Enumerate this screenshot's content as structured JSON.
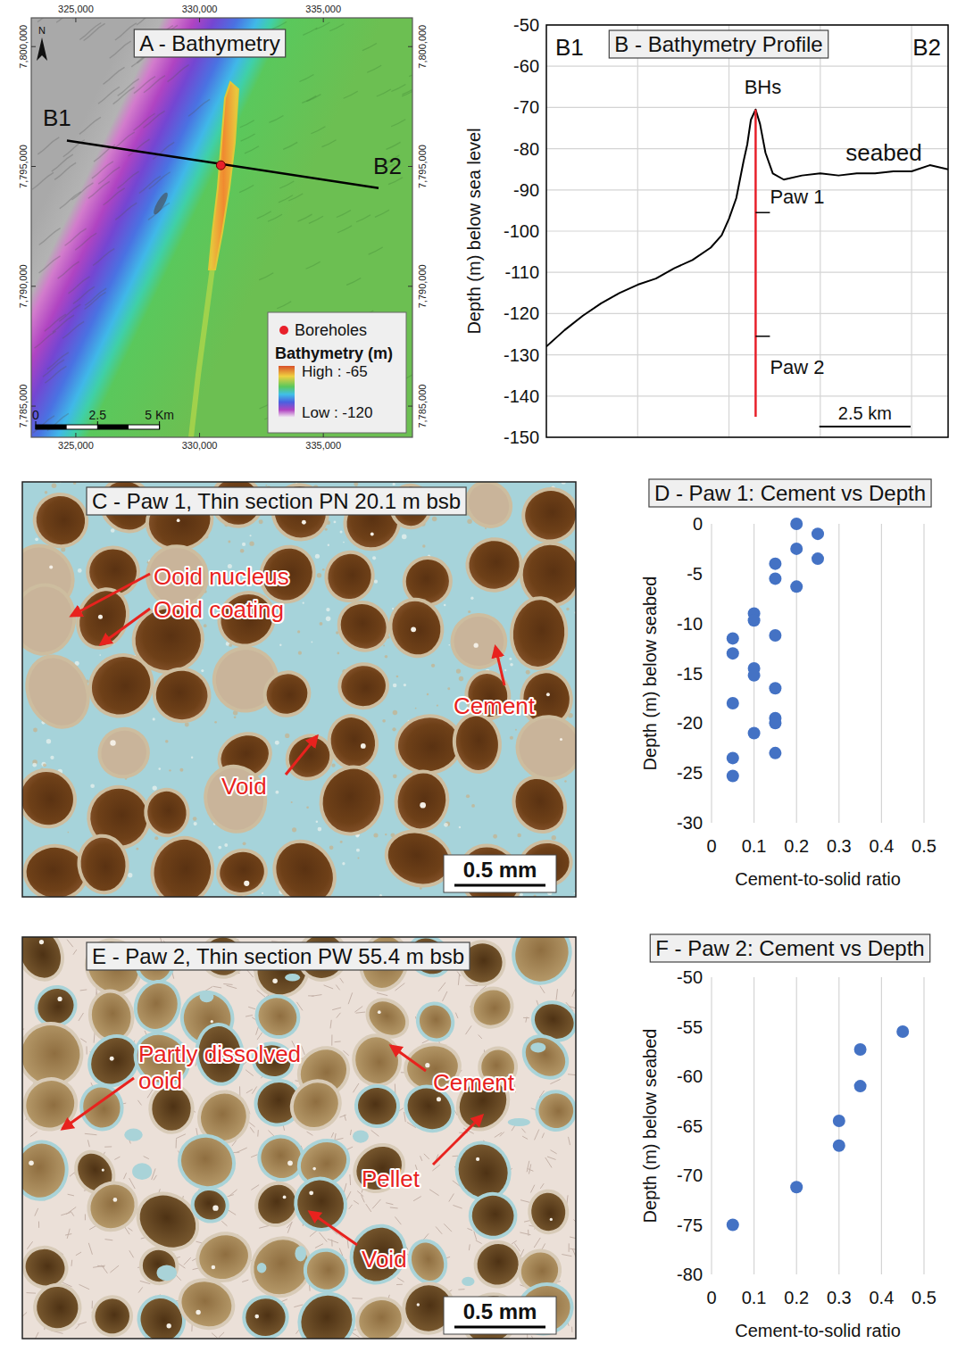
{
  "map": {
    "title": "A - Bathymetry",
    "north": "N",
    "xlim": [
      323200,
      338600
    ],
    "ylim": [
      7783700,
      7801200
    ],
    "xticks": [
      {
        "value": 325000,
        "label": "325,000"
      },
      {
        "value": 330000,
        "label": "330,000"
      },
      {
        "value": 335000,
        "label": "335,000"
      }
    ],
    "yticks": [
      {
        "value": 7785000,
        "label": "7,785,000"
      },
      {
        "value": 7790000,
        "label": "7,790,000"
      },
      {
        "value": 7795000,
        "label": "7,795,000"
      },
      {
        "value": 7800000,
        "label": "7,800,000"
      }
    ],
    "section": {
      "start": {
        "label": "B1",
        "x": 324640,
        "y": 7796080
      },
      "end": {
        "label": "B2",
        "x": 337230,
        "y": 7794100
      }
    },
    "borehole": {
      "x": 330860,
      "y": 7795050,
      "color": "#e8202a"
    },
    "legend": {
      "marker_label": "Boreholes",
      "title": "Bathymetry (m)",
      "high": {
        "value": -65,
        "label": "High : -65"
      },
      "low": {
        "value": -120,
        "label": "Low : -120"
      }
    },
    "scale_bar": {
      "ticks": [
        {
          "value": 0,
          "label": "0"
        },
        {
          "value": 2500,
          "label": "2.5"
        },
        {
          "value": 5000,
          "label": "5 Km"
        }
      ]
    }
  },
  "chart_data": [
    {
      "type": "line",
      "title": "B - Bathymetry Profile",
      "start_label": "B1",
      "end_label": "B2",
      "ylabel": "Depth (m) below sea level",
      "x": [
        0,
        0.5,
        1,
        1.5,
        2,
        2.5,
        3,
        3.5,
        4,
        4.5,
        4.8,
        5,
        5.2,
        5.4,
        5.5,
        5.6,
        5.73,
        5.85,
        6,
        6.2,
        6.5,
        7,
        7.5,
        8,
        8.5,
        9,
        9.5,
        10,
        10.5,
        11
      ],
      "values": [
        -128,
        -124,
        -120.5,
        -117.5,
        -115,
        -113,
        -111.5,
        -109,
        -107,
        -104,
        -101,
        -97,
        -92,
        -83,
        -79,
        -73,
        -70.5,
        -74,
        -81,
        -86,
        -87.5,
        -86.5,
        -86,
        -86.5,
        -86,
        -86,
        -85.5,
        -85.5,
        -84,
        -85
      ],
      "xlim": [
        0,
        11
      ],
      "ylim": [
        -150,
        -50
      ],
      "xticks": [
        2.5,
        5,
        7.5,
        10
      ],
      "yticks": [
        -150,
        -140,
        -130,
        -120,
        -110,
        -100,
        -90,
        -80,
        -70,
        -60,
        -50
      ],
      "grid": true,
      "tick_labels": "y",
      "color": "#000000",
      "annotations": [
        "BHs",
        "seabed"
      ],
      "borehole": {
        "x": 5.73,
        "top": -70.5,
        "bottom": -145,
        "color": "#e8202a"
      },
      "intervals": [
        {
          "label": "Paw 1",
          "depth": -95.5
        },
        {
          "label": "Paw 2",
          "depth": -125.5
        }
      ],
      "scale_bar": {
        "value": 2.5,
        "label": "2.5 km"
      }
    },
    {
      "type": "scatter",
      "title": "D - Paw 1: Cement vs Depth",
      "xlabel": "Cement-to-solid ratio",
      "ylabel": "Depth (m) below seabed",
      "x": [
        0.2,
        0.25,
        0.2,
        0.25,
        0.15,
        0.15,
        0.2,
        0.1,
        0.1,
        0.05,
        0.15,
        0.05,
        0.1,
        0.1,
        0.15,
        0.05,
        0.15,
        0.15,
        0.1,
        0.15,
        0.05,
        0.05
      ],
      "values": [
        0,
        -1,
        -2.5,
        -3.5,
        -4,
        -5.5,
        -6.3,
        -9,
        -9.7,
        -11.5,
        -11.2,
        -13,
        -14.5,
        -15.2,
        -16.5,
        -18,
        -19.5,
        -20,
        -21,
        -23,
        -23.5,
        -25.3
      ],
      "xlim": [
        0,
        0.5
      ],
      "ylim": [
        -30,
        0
      ],
      "xticks": [
        0,
        0.1,
        0.2,
        0.3,
        0.4,
        0.5
      ],
      "yticks": [
        -30,
        -25,
        -20,
        -15,
        -10,
        -5,
        0
      ],
      "grid": "x",
      "color": "#4472c4",
      "marker": "circle"
    },
    {
      "type": "scatter",
      "title": "F - Paw 2: Cement vs Depth",
      "xlabel": "Cement-to-solid ratio",
      "ylabel": "Depth (m) below seabed",
      "x": [
        0.45,
        0.35,
        0.35,
        0.3,
        0.3,
        0.2,
        0.05
      ],
      "values": [
        -55.5,
        -57.3,
        -61,
        -64.5,
        -67,
        -71.2,
        -75
      ],
      "xlim": [
        0,
        0.5
      ],
      "ylim": [
        -80,
        -50
      ],
      "xticks": [
        0,
        0.1,
        0.2,
        0.3,
        0.4,
        0.5
      ],
      "yticks": [
        -80,
        -75,
        -70,
        -65,
        -60,
        -55,
        -50
      ],
      "grid": "x",
      "color": "#4472c4",
      "marker": "circle"
    }
  ],
  "thin_sections": [
    {
      "title": "C - Paw 1, Thin section PN 20.1 m bsb",
      "labels": [
        "Ooid nucleus",
        "Ooid coating",
        "Cement",
        "Void"
      ],
      "scale_bar": "0.5 mm"
    },
    {
      "title": "E - Paw 2, Thin section PW 55.4 m bsb",
      "labels": [
        "Partly dissolved ooid",
        "Cement",
        "Pellet",
        "Void"
      ],
      "scale_bar": "0.5 mm"
    }
  ]
}
